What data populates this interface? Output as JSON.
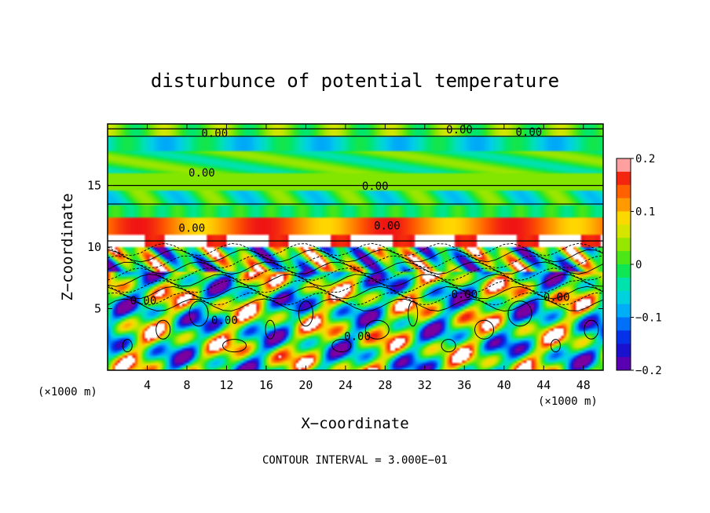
{
  "chart_data": {
    "type": "heatmap",
    "title": "disturbunce of potential temperature",
    "xlabel": "X−coordinate",
    "ylabel": "Z−coordinate",
    "x_unit": "(×1000 m)",
    "x_unit_right": "(×1000 m)",
    "footer": "CONTOUR INTERVAL = 3.000E−01",
    "xlim": [
      0,
      50
    ],
    "ylim": [
      0,
      20
    ],
    "x_ticks": [
      4,
      8,
      12,
      16,
      20,
      24,
      28,
      32,
      36,
      40,
      44,
      48
    ],
    "x_tick_labels": [
      "4",
      "8",
      "12",
      "16",
      "20",
      "24",
      "28",
      "32",
      "36",
      "40",
      "44",
      "48"
    ],
    "y_ticks": [
      5,
      10,
      15
    ],
    "y_tick_labels": [
      "5",
      "10",
      "15"
    ],
    "colorbar": {
      "vmin": -0.2,
      "vmax": 0.2,
      "ticks": [
        0.2,
        0.1,
        0,
        -0.1,
        -0.2
      ],
      "tick_labels": [
        "0.2",
        "0.1",
        "0",
        "−0.1",
        "−0.2"
      ]
    },
    "contour_labels": [
      {
        "text": "0.00",
        "x": 10.8,
        "z": 19.2
      },
      {
        "text": "0.00",
        "x": 35.5,
        "z": 19.5
      },
      {
        "text": "0.00",
        "x": 42.5,
        "z": 19.3
      },
      {
        "text": "0.00",
        "x": 9.5,
        "z": 16.0
      },
      {
        "text": "0.00",
        "x": 27.0,
        "z": 14.9
      },
      {
        "text": "0.00",
        "x": 8.5,
        "z": 11.5
      },
      {
        "text": "0.00",
        "x": 28.2,
        "z": 11.7
      },
      {
        "text": "0.00",
        "x": 3.6,
        "z": 5.6
      },
      {
        "text": "0.00",
        "x": 11.8,
        "z": 4.0
      },
      {
        "text": "0.00",
        "x": 25.2,
        "z": 2.7
      },
      {
        "text": "0.00",
        "x": 36.0,
        "z": 6.1
      },
      {
        "text": "0.00",
        "x": 45.3,
        "z": 5.9
      }
    ]
  }
}
